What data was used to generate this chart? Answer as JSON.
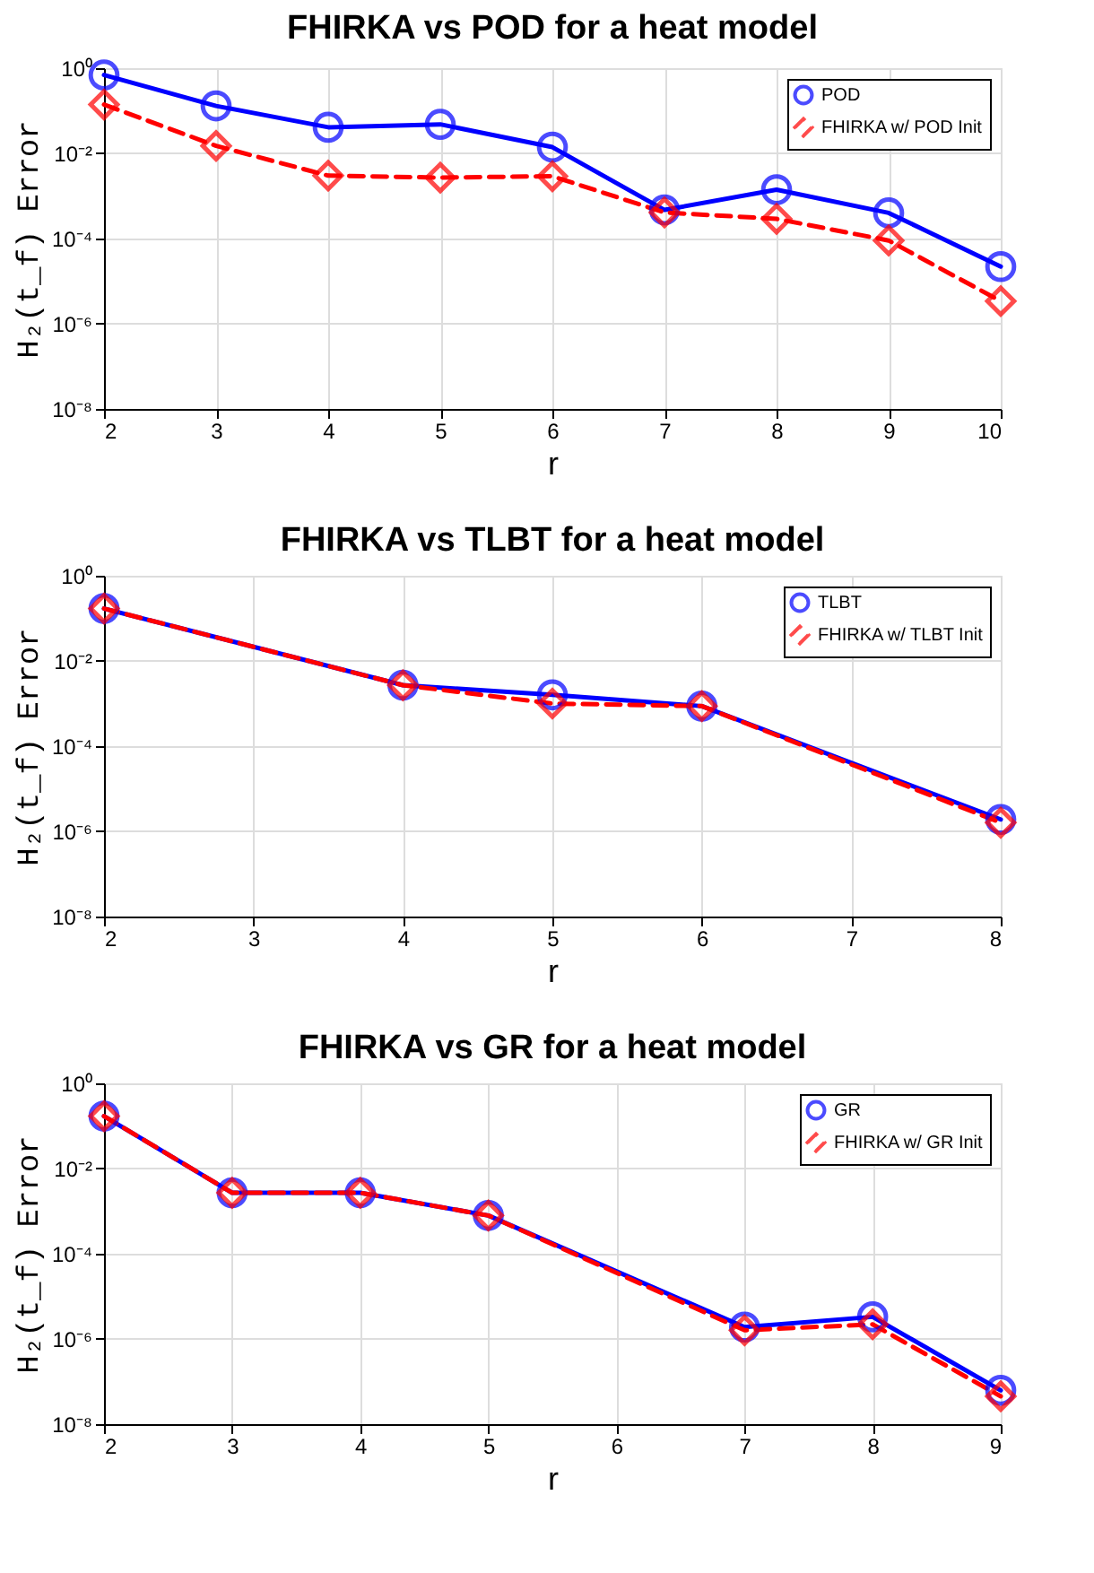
{
  "chart_data": [
    {
      "type": "line",
      "title": "FHIRKA vs POD for a heat model",
      "xlabel": "r",
      "ylabel": "H₂(t_f) Error",
      "log": "y",
      "grid": true,
      "legend": "top right",
      "xlim": [
        2,
        10
      ],
      "xticks": [
        2,
        3,
        4,
        5,
        6,
        7,
        8,
        9,
        10
      ],
      "ylim": [
        1e-08,
        1
      ],
      "yticks": [
        {
          "value": 1e-08,
          "label": "10⁻⁸"
        },
        {
          "value": 1e-06,
          "label": "10⁻⁶"
        },
        {
          "value": 0.0001,
          "label": "10⁻⁴"
        },
        {
          "value": 0.01,
          "label": "10⁻²"
        },
        {
          "value": 1,
          "label": "10⁰"
        }
      ],
      "x": [
        2,
        3,
        4,
        5,
        6,
        7,
        8,
        9,
        10
      ],
      "series": [
        {
          "name": "POD",
          "color": "#0000ff",
          "marker": "circle",
          "line_style": "solid",
          "values": [
            0.69,
            0.13,
            0.041,
            0.048,
            0.014,
            0.00047,
            0.0014,
            0.0004,
            2.2e-05
          ]
        },
        {
          "name": "FHIRKA w/ POD Init",
          "color": "#ff0000",
          "marker": "diamond",
          "line_style": "dashed",
          "values": [
            0.14,
            0.015,
            0.003,
            0.0027,
            0.0029,
            0.00041,
            0.00029,
            9e-05,
            3.4e-06
          ]
        }
      ]
    },
    {
      "type": "line",
      "title": "FHIRKA vs TLBT for a heat model",
      "xlabel": "r",
      "ylabel": "H₂(t_f) Error",
      "log": "y",
      "grid": true,
      "legend": "top right",
      "xlim": [
        2,
        8
      ],
      "xticks": [
        2,
        3,
        4,
        5,
        6,
        7,
        8
      ],
      "ylim": [
        1e-08,
        1
      ],
      "yticks": [
        {
          "value": 1e-08,
          "label": "10⁻⁸"
        },
        {
          "value": 1e-06,
          "label": "10⁻⁶"
        },
        {
          "value": 0.0001,
          "label": "10⁻⁴"
        },
        {
          "value": 0.01,
          "label": "10⁻²"
        },
        {
          "value": 1,
          "label": "10⁰"
        }
      ],
      "x": [
        2,
        4,
        5,
        6,
        8
      ],
      "series": [
        {
          "name": "TLBT",
          "color": "#0000ff",
          "marker": "circle",
          "line_style": "solid",
          "values": [
            0.17,
            0.0027,
            0.0016,
            0.00087,
            1.9e-06
          ]
        },
        {
          "name": "FHIRKA w/ TLBT Init",
          "color": "#ff0000",
          "marker": "diamond",
          "line_style": "dashed",
          "values": [
            0.17,
            0.0027,
            0.001,
            0.00087,
            1.6e-06
          ]
        }
      ]
    },
    {
      "type": "line",
      "title": "FHIRKA vs GR for a heat model",
      "xlabel": "r",
      "ylabel": "H₂(t_f) Error",
      "log": "y",
      "grid": true,
      "legend": "top right",
      "xlim": [
        2,
        9
      ],
      "xticks": [
        2,
        3,
        4,
        5,
        6,
        7,
        8,
        9
      ],
      "ylim": [
        1e-08,
        1
      ],
      "yticks": [
        {
          "value": 1e-08,
          "label": "10⁻⁸"
        },
        {
          "value": 1e-06,
          "label": "10⁻⁶"
        },
        {
          "value": 0.0001,
          "label": "10⁻⁴"
        },
        {
          "value": 0.01,
          "label": "10⁻²"
        },
        {
          "value": 1,
          "label": "10⁰"
        }
      ],
      "x": [
        2,
        3,
        4,
        5,
        7,
        8,
        9
      ],
      "series": [
        {
          "name": "GR",
          "color": "#0000ff",
          "marker": "circle",
          "line_style": "solid",
          "values": [
            0.17,
            0.0027,
            0.0027,
            0.00079,
            1.9e-06,
            3.3e-06,
            6.2e-08
          ]
        },
        {
          "name": "FHIRKA w/ GR Init",
          "color": "#ff0000",
          "marker": "diamond",
          "line_style": "dashed",
          "values": [
            0.17,
            0.0027,
            0.0027,
            0.00079,
            1.6e-06,
            2.2e-06,
            4.5e-08
          ]
        }
      ]
    }
  ]
}
